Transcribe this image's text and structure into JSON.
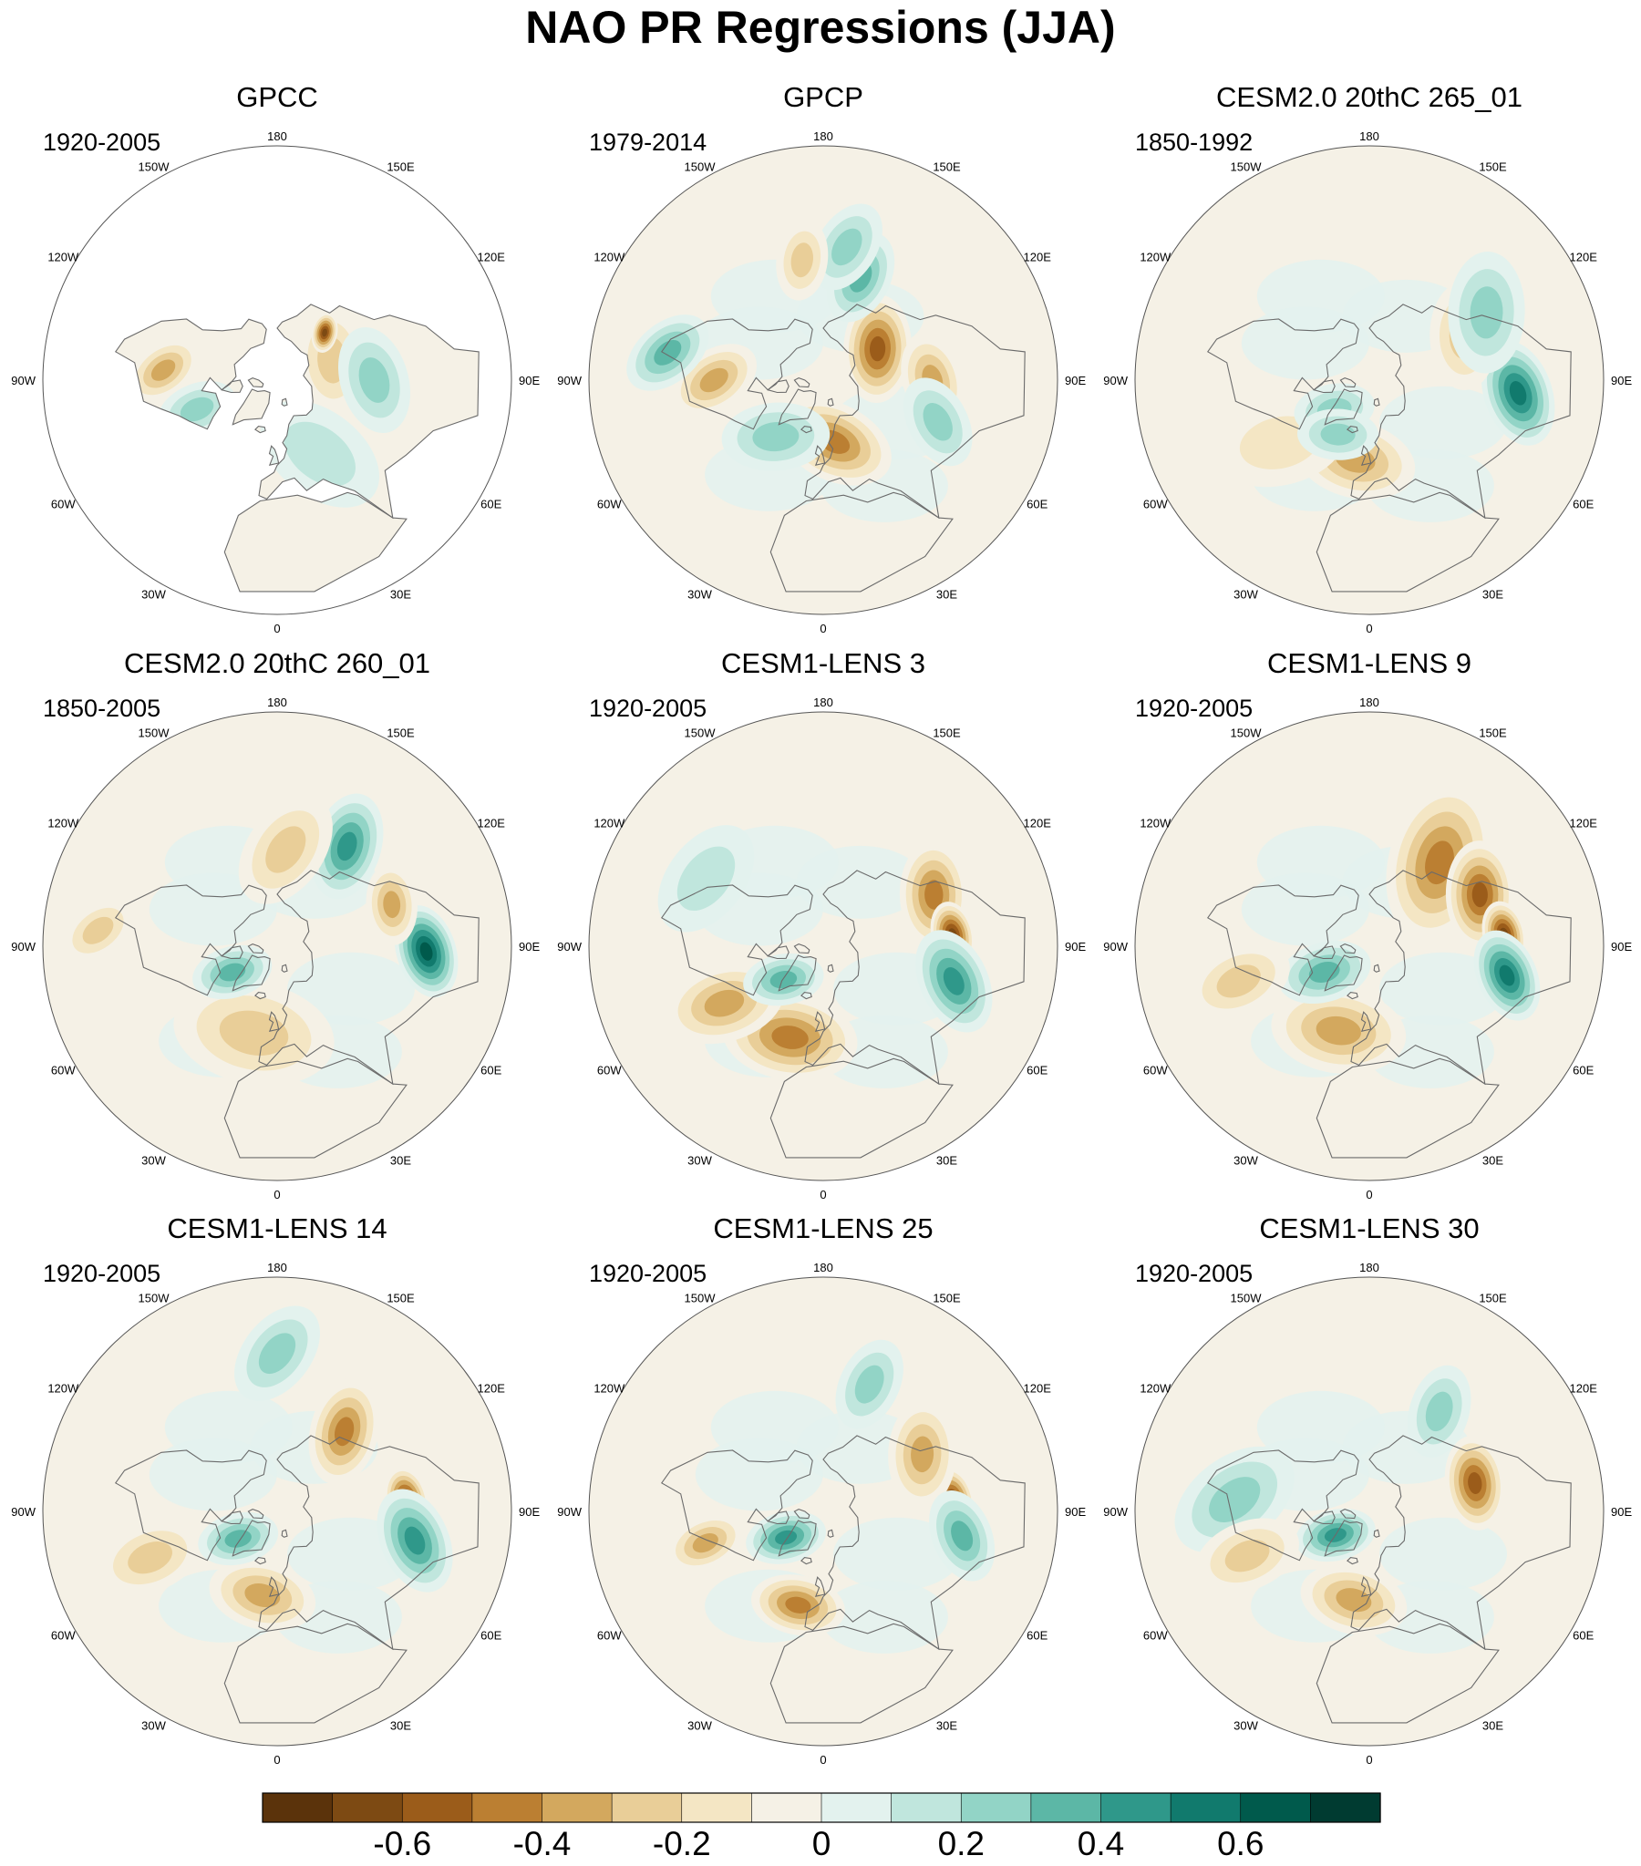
{
  "chart_data": {
    "type": "polar-contour-map",
    "title": "NAO PR Regressions (JJA)",
    "projection": "north-polar-stereographic",
    "longitude_labels": [
      "180",
      "150E",
      "120E",
      "90E",
      "60E",
      "30E",
      "0",
      "30W",
      "60W",
      "90W",
      "120W",
      "150W"
    ],
    "panels": [
      {
        "name": "GPCC",
        "years": "1920-2005",
        "land_only": true,
        "features": [
          {
            "lon": 20,
            "lat": 62,
            "value": -0.3,
            "spread": 8
          },
          {
            "lon": 100,
            "lat": 52,
            "value": -0.6,
            "spread": 6
          },
          {
            "lon": 110,
            "lat": 62,
            "value": -0.3,
            "spread": 8
          },
          {
            "lon": 135,
            "lat": 58,
            "value": -0.7,
            "spread": 3
          },
          {
            "lon": 90,
            "lat": 45,
            "value": 0.3,
            "spread": 8
          },
          {
            "lon": -95,
            "lat": 38,
            "value": -0.4,
            "spread": 6
          },
          {
            "lon": -70,
            "lat": 50,
            "value": 0.3,
            "spread": 6
          },
          {
            "lon": 30,
            "lat": 50,
            "value": 0.2,
            "spread": 10
          }
        ]
      },
      {
        "name": "GPCP",
        "years": "1979-2014",
        "land_only": false,
        "features": [
          {
            "lon": 120,
            "lat": 60,
            "value": -0.6,
            "spread": 8
          },
          {
            "lon": 160,
            "lat": 40,
            "value": 0.4,
            "spread": 7
          },
          {
            "lon": 170,
            "lat": 30,
            "value": 0.3,
            "spread": 7
          },
          {
            "lon": -170,
            "lat": 35,
            "value": -0.3,
            "spread": 6
          },
          {
            "lon": 90,
            "lat": 40,
            "value": -0.4,
            "spread": 7
          },
          {
            "lon": 70,
            "lat": 35,
            "value": 0.3,
            "spread": 7
          },
          {
            "lon": 10,
            "lat": 60,
            "value": -0.5,
            "spread": 9
          },
          {
            "lon": -40,
            "lat": 55,
            "value": 0.3,
            "spread": 8
          },
          {
            "lon": -90,
            "lat": 40,
            "value": -0.4,
            "spread": 7
          },
          {
            "lon": -100,
            "lat": 22,
            "value": 0.4,
            "spread": 7
          }
        ]
      },
      {
        "name": "CESM2.0 20thC 265_01",
        "years": "1850-1992",
        "land_only": false,
        "features": [
          {
            "lon": 85,
            "lat": 25,
            "value": 0.6,
            "spread": 8
          },
          {
            "lon": 115,
            "lat": 42,
            "value": -0.3,
            "spread": 8
          },
          {
            "lon": 120,
            "lat": 30,
            "value": 0.3,
            "spread": 9
          },
          {
            "lon": -10,
            "lat": 52,
            "value": -0.4,
            "spread": 9
          },
          {
            "lon": -55,
            "lat": 40,
            "value": -0.2,
            "spread": 10
          },
          {
            "lon": -50,
            "lat": 68,
            "value": 0.3,
            "spread": 6
          },
          {
            "lon": -30,
            "lat": 60,
            "value": 0.3,
            "spread": 6
          }
        ]
      },
      {
        "name": "CESM2.0 20thC 260_01",
        "years": "1850-2005",
        "land_only": false,
        "features": [
          {
            "lon": 88,
            "lat": 25,
            "value": 0.7,
            "spread": 7
          },
          {
            "lon": 145,
            "lat": 35,
            "value": 0.5,
            "spread": 8
          },
          {
            "lon": 175,
            "lat": 45,
            "value": -0.3,
            "spread": 9
          },
          {
            "lon": 110,
            "lat": 35,
            "value": -0.4,
            "spread": 6
          },
          {
            "lon": -15,
            "lat": 48,
            "value": -0.3,
            "spread": 12
          },
          {
            "lon": -60,
            "lat": 65,
            "value": 0.4,
            "spread": 6
          },
          {
            "lon": -95,
            "lat": 15,
            "value": -0.3,
            "spread": 6
          }
        ]
      },
      {
        "name": "CESM1-LENS 3",
        "years": "1920-2005",
        "land_only": false,
        "features": [
          {
            "lon": 115,
            "lat": 35,
            "value": -0.5,
            "spread": 8
          },
          {
            "lon": 95,
            "lat": 32,
            "value": -0.7,
            "spread": 5
          },
          {
            "lon": 75,
            "lat": 30,
            "value": 0.5,
            "spread": 8
          },
          {
            "lon": -20,
            "lat": 45,
            "value": -0.5,
            "spread": 10
          },
          {
            "lon": -60,
            "lat": 38,
            "value": -0.4,
            "spread": 9
          },
          {
            "lon": -50,
            "lat": 65,
            "value": 0.4,
            "spread": 6
          },
          {
            "lon": -120,
            "lat": 30,
            "value": 0.2,
            "spread": 9
          }
        ]
      },
      {
        "name": "CESM1-LENS 9",
        "years": "1920-2005",
        "land_only": false,
        "features": [
          {
            "lon": 140,
            "lat": 40,
            "value": -0.5,
            "spread": 12
          },
          {
            "lon": 115,
            "lat": 35,
            "value": -0.6,
            "spread": 8
          },
          {
            "lon": 95,
            "lat": 30,
            "value": -0.7,
            "spread": 5
          },
          {
            "lon": 78,
            "lat": 28,
            "value": 0.6,
            "spread": 7
          },
          {
            "lon": -20,
            "lat": 48,
            "value": -0.4,
            "spread": 10
          },
          {
            "lon": -60,
            "lat": 65,
            "value": 0.4,
            "spread": 7
          },
          {
            "lon": -75,
            "lat": 30,
            "value": -0.3,
            "spread": 8
          }
        ]
      },
      {
        "name": "CESM1-LENS 14",
        "years": "1920-2005",
        "land_only": false,
        "features": [
          {
            "lon": 140,
            "lat": 42,
            "value": -0.5,
            "spread": 8
          },
          {
            "lon": 95,
            "lat": 32,
            "value": -0.7,
            "spread": 5
          },
          {
            "lon": 78,
            "lat": 28,
            "value": 0.5,
            "spread": 8
          },
          {
            "lon": -10,
            "lat": 50,
            "value": -0.4,
            "spread": 8
          },
          {
            "lon": -70,
            "lat": 30,
            "value": -0.3,
            "spread": 8
          },
          {
            "lon": -55,
            "lat": 67,
            "value": 0.4,
            "spread": 6
          },
          {
            "lon": 180,
            "lat": 22,
            "value": 0.3,
            "spread": 8
          }
        ]
      },
      {
        "name": "CESM1-LENS 25",
        "years": "1920-2005",
        "land_only": false,
        "features": [
          {
            "lon": 95,
            "lat": 32,
            "value": -0.7,
            "spread": 5
          },
          {
            "lon": 120,
            "lat": 38,
            "value": -0.4,
            "spread": 8
          },
          {
            "lon": 80,
            "lat": 28,
            "value": 0.4,
            "spread": 7
          },
          {
            "lon": -15,
            "lat": 45,
            "value": -0.5,
            "spread": 7
          },
          {
            "lon": -55,
            "lat": 68,
            "value": 0.5,
            "spread": 6
          },
          {
            "lon": -75,
            "lat": 35,
            "value": -0.4,
            "spread": 6
          },
          {
            "lon": 160,
            "lat": 30,
            "value": 0.3,
            "spread": 7
          }
        ]
      },
      {
        "name": "CESM1-LENS 30",
        "years": "1920-2005",
        "land_only": false,
        "features": [
          {
            "lon": 105,
            "lat": 40,
            "value": -0.6,
            "spread": 7
          },
          {
            "lon": -10,
            "lat": 48,
            "value": -0.4,
            "spread": 8
          },
          {
            "lon": -55,
            "lat": 70,
            "value": 0.5,
            "spread": 6
          },
          {
            "lon": -95,
            "lat": 30,
            "value": 0.3,
            "spread": 10
          },
          {
            "lon": -70,
            "lat": 32,
            "value": -0.3,
            "spread": 8
          },
          {
            "lon": 145,
            "lat": 35,
            "value": 0.3,
            "spread": 7
          }
        ]
      }
    ],
    "colorbar": {
      "levels": [
        -0.7,
        -0.6,
        -0.5,
        -0.4,
        -0.3,
        -0.2,
        -0.1,
        0,
        0.1,
        0.2,
        0.3,
        0.4,
        0.5,
        0.6,
        0.7
      ],
      "colors": [
        "#5b330b",
        "#7d4a13",
        "#9b5c1a",
        "#bb7f32",
        "#d3a85e",
        "#e9ce98",
        "#f4e6c4",
        "#f5f1e6",
        "#e3f2ee",
        "#c0e6dd",
        "#92d4c6",
        "#5cb7a6",
        "#2f988a",
        "#117a6d",
        "#005a4c",
        "#003b31"
      ],
      "tick_labels": [
        "-0.6",
        "-0.4",
        "-0.2",
        "0",
        "0.2",
        "0.4",
        "0.6"
      ],
      "tick_values": [
        -0.6,
        -0.4,
        -0.2,
        0,
        0.2,
        0.4,
        0.6
      ]
    }
  }
}
